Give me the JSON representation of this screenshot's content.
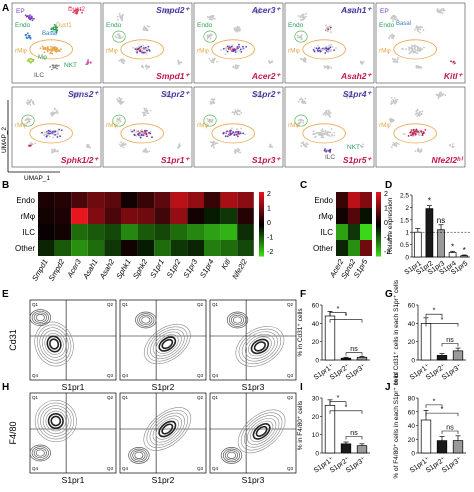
{
  "panel_letters": [
    "A",
    "B",
    "C",
    "D",
    "E",
    "F",
    "G",
    "H",
    "I",
    "J"
  ],
  "umap": {
    "xlabel": "UMAP_1",
    "ylabel": "UMAP_2",
    "ref_labels": {
      "ep": "EP",
      "duct2": "Duct2",
      "duct1": "Duct1",
      "basal": "Basal",
      "endo": "Endo",
      "rmphi": "rMφ",
      "mphi": "Mφ",
      "nkt": "NKT",
      "ilc": "ILC"
    },
    "panels": [
      {
        "top": "",
        "bottom": ""
      },
      {
        "top": "Smpd2⁺",
        "bottom": "Smpd1⁺"
      },
      {
        "top": "Acer3⁺",
        "bottom": "Acer2⁺"
      },
      {
        "top": "Asah1⁺",
        "bottom": "Asah2⁺"
      },
      {
        "top": "",
        "bottom": "Kitl⁺"
      },
      {
        "top": "Spns2⁺",
        "bottom": "Sphk1/2⁺"
      },
      {
        "top": "S1pr2⁺",
        "bottom": "S1pr1⁺"
      },
      {
        "top": "S1pr2⁺",
        "bottom": "S1pr3⁺"
      },
      {
        "top": "S1pr4⁺",
        "bottom": "S1pr5⁺"
      },
      {
        "top": "",
        "bottom": "Nfe2l2ʰⁱ"
      }
    ],
    "row2_labels": {
      "endo": "Endo",
      "rmphi": "rMφ",
      "ilc": "ILC",
      "nkt": "NKT",
      "ep": "EP",
      "basal": "Basal",
      "rmphi2": "rMφ"
    }
  },
  "heatmap_b": {
    "rows": [
      "Endo",
      "rMφ",
      "ILC",
      "Other"
    ],
    "cols": [
      "Smpd1",
      "Smpd2",
      "Acer3",
      "Asah1",
      "Asah2",
      "Sphk1",
      "Sphk2",
      "S1pr1",
      "S1pr2",
      "S1pr3",
      "S1pr4",
      "Kitl",
      "Nfe2l2"
    ],
    "values": [
      [
        0.3,
        0.4,
        0.8,
        1.2,
        1.0,
        0.2,
        0.6,
        1.0,
        2.0,
        1.6,
        0.6,
        1.8,
        1.5
      ],
      [
        0.2,
        0.3,
        2.8,
        1.4,
        0.8,
        1.3,
        1.2,
        0.7,
        1.6,
        0.2,
        -0.3,
        -0.6,
        0.4
      ],
      [
        0.1,
        0.2,
        -1.2,
        -1.0,
        -0.8,
        -1.5,
        -1.0,
        -0.8,
        -1.2,
        -1.5,
        -1.8,
        -2.0,
        -0.5
      ],
      [
        -0.4,
        -1.0,
        -1.6,
        -1.2,
        -0.6,
        0.2,
        -0.3,
        -1.2,
        -0.6,
        -0.4,
        -1.4,
        -1.2,
        -0.8
      ]
    ],
    "colorbar": [
      "2",
      "1",
      "0",
      "-1",
      "-2"
    ]
  },
  "heatmap_c": {
    "rows": [
      "Endo",
      "rMφ",
      "ILC",
      "Other"
    ],
    "cols": [
      "Acer2",
      "Spns2",
      "S1pr5"
    ],
    "values": [
      [
        0.6,
        2.0,
        1.4
      ],
      [
        0.2,
        0.9,
        -0.2
      ],
      [
        -1.8,
        -0.6,
        -2.4
      ],
      [
        -0.4,
        -1.6,
        1.2
      ]
    ],
    "colorbar": [
      "2",
      "1",
      "0",
      "-1",
      "-2"
    ]
  },
  "chart_data": [
    {
      "panel": "D",
      "type": "bar",
      "categories": [
        "S1pr1",
        "S1pr2",
        "S1pr3",
        "S1pr4",
        "S1pr5"
      ],
      "values": [
        1.0,
        1.95,
        1.1,
        0.18,
        0.05
      ],
      "errors": [
        0.15,
        0.12,
        0.2,
        0.05,
        0.03
      ],
      "fills": [
        "#ffffff",
        "#1a1a1a",
        "#9a9a9a",
        "#ffffff",
        "#bdbdbd"
      ],
      "annotations": [
        "",
        "*",
        "ns",
        "*",
        "*"
      ],
      "ylabel": "Relative expression",
      "ylim": [
        0,
        2.5
      ],
      "yticks": [
        0,
        0.5,
        1,
        1.5,
        2,
        2.5
      ]
    },
    {
      "panel": "F",
      "type": "bar",
      "categories": [
        "S1pr1⁺",
        "S1pr2⁺",
        "S1pr3⁺"
      ],
      "values": [
        48,
        2,
        3
      ],
      "errors": [
        5,
        1,
        1
      ],
      "fills": [
        "#ffffff",
        "#1a1a1a",
        "#9a9a9a"
      ],
      "ylabel": "% in Cd31⁺ cells",
      "ylim": [
        0,
        60
      ],
      "yticks": [
        0,
        20,
        40,
        60
      ],
      "brackets": [
        {
          "from": 0,
          "to": 1,
          "level": 52,
          "label": "*"
        },
        {
          "from": 0,
          "to": 2,
          "level": 44,
          "label": "*"
        },
        {
          "from": 1,
          "to": 2,
          "level": 8,
          "label": "ns"
        }
      ]
    },
    {
      "panel": "G",
      "type": "bar",
      "categories": [
        "S1pr1⁺",
        "S1pr2⁺",
        "S1pr3⁺"
      ],
      "values": [
        40,
        5,
        10
      ],
      "errors": [
        6,
        2,
        3
      ],
      "fills": [
        "#ffffff",
        "#1a1a1a",
        "#9a9a9a"
      ],
      "ylabel": "% of Cd31⁺ cells in each S1pr⁺ cells",
      "ylim": [
        0,
        60
      ],
      "yticks": [
        0,
        20,
        40,
        60
      ],
      "brackets": [
        {
          "from": 0,
          "to": 1,
          "level": 50,
          "label": "*"
        },
        {
          "from": 0,
          "to": 2,
          "level": 40,
          "label": "*"
        },
        {
          "from": 1,
          "to": 2,
          "level": 18,
          "label": "ns"
        }
      ]
    },
    {
      "panel": "I",
      "type": "bar",
      "categories": [
        "S1pr1⁺",
        "S1pr2⁺",
        "S1pr3⁺"
      ],
      "values": [
        26,
        5,
        4
      ],
      "errors": [
        3,
        1,
        1
      ],
      "fills": [
        "#ffffff",
        "#1a1a1a",
        "#9a9a9a"
      ],
      "ylabel": "% in F4/80⁺ cells",
      "ylim": [
        0,
        30
      ],
      "yticks": [
        0,
        10,
        20,
        30
      ],
      "brackets": [
        {
          "from": 0,
          "to": 1,
          "level": 28,
          "label": "*"
        },
        {
          "from": 0,
          "to": 2,
          "level": 23,
          "label": "*"
        },
        {
          "from": 1,
          "to": 2,
          "level": 9,
          "label": "ns"
        }
      ]
    },
    {
      "panel": "J",
      "type": "bar",
      "categories": [
        "S1pr1⁺",
        "S1pr2⁺",
        "S1pr3⁺"
      ],
      "values": [
        48,
        18,
        18
      ],
      "errors": [
        14,
        6,
        7
      ],
      "fills": [
        "#ffffff",
        "#1a1a1a",
        "#9a9a9a"
      ],
      "ylabel": "% of F4/80⁺ cells in each S1pr⁺ cells",
      "ylim": [
        0,
        80
      ],
      "yticks": [
        0,
        20,
        40,
        60,
        80
      ],
      "brackets": [
        {
          "from": 0,
          "to": 1,
          "level": 70,
          "label": "*"
        },
        {
          "from": 0,
          "to": 2,
          "level": 58,
          "label": "*"
        },
        {
          "from": 1,
          "to": 2,
          "level": 32,
          "label": "ns"
        }
      ]
    }
  ],
  "flow_e": {
    "ylabel": "Cd31",
    "plots": [
      {
        "xlabel": "S1pr1",
        "quads": [
          "Q1",
          "Q2",
          "Q4",
          "Q3"
        ]
      },
      {
        "xlabel": "S1pr2",
        "quads": [
          "Q1",
          "Q2",
          "Q4",
          "Q3"
        ]
      },
      {
        "xlabel": "S1pr3",
        "quads": [
          "Q1",
          "Q2",
          "Q4",
          "Q3"
        ]
      }
    ]
  },
  "flow_h": {
    "ylabel": "F4/80",
    "plots": [
      {
        "xlabel": "S1pr1",
        "quads": [
          "Q1",
          "Q2",
          "Q4",
          "Q3"
        ]
      },
      {
        "xlabel": "S1pr2",
        "quads": [
          "Q1",
          "Q2",
          "Q4",
          "Q3"
        ]
      },
      {
        "xlabel": "S1pr3",
        "quads": [
          "Q1",
          "Q2",
          "Q4",
          "Q3"
        ]
      }
    ]
  },
  "colors": {
    "heat_hi": "#e8141e",
    "heat_mid": "#000000",
    "heat_lo": "#3ee01a",
    "purple": "#5a3dbf",
    "crimson": "#c2184b",
    "orange": "#e8a64b"
  }
}
